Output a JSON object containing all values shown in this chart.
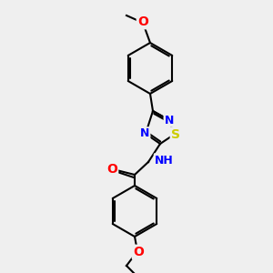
{
  "bg_color": "#efefef",
  "bond_color": "#000000",
  "bond_width": 1.5,
  "atom_colors": {
    "N": "#0000FF",
    "O": "#FF0000",
    "S": "#CCCC00",
    "C": "#000000",
    "H": "#808080"
  },
  "font_size": 9,
  "fig_size": [
    3.0,
    3.0
  ],
  "dpi": 100
}
